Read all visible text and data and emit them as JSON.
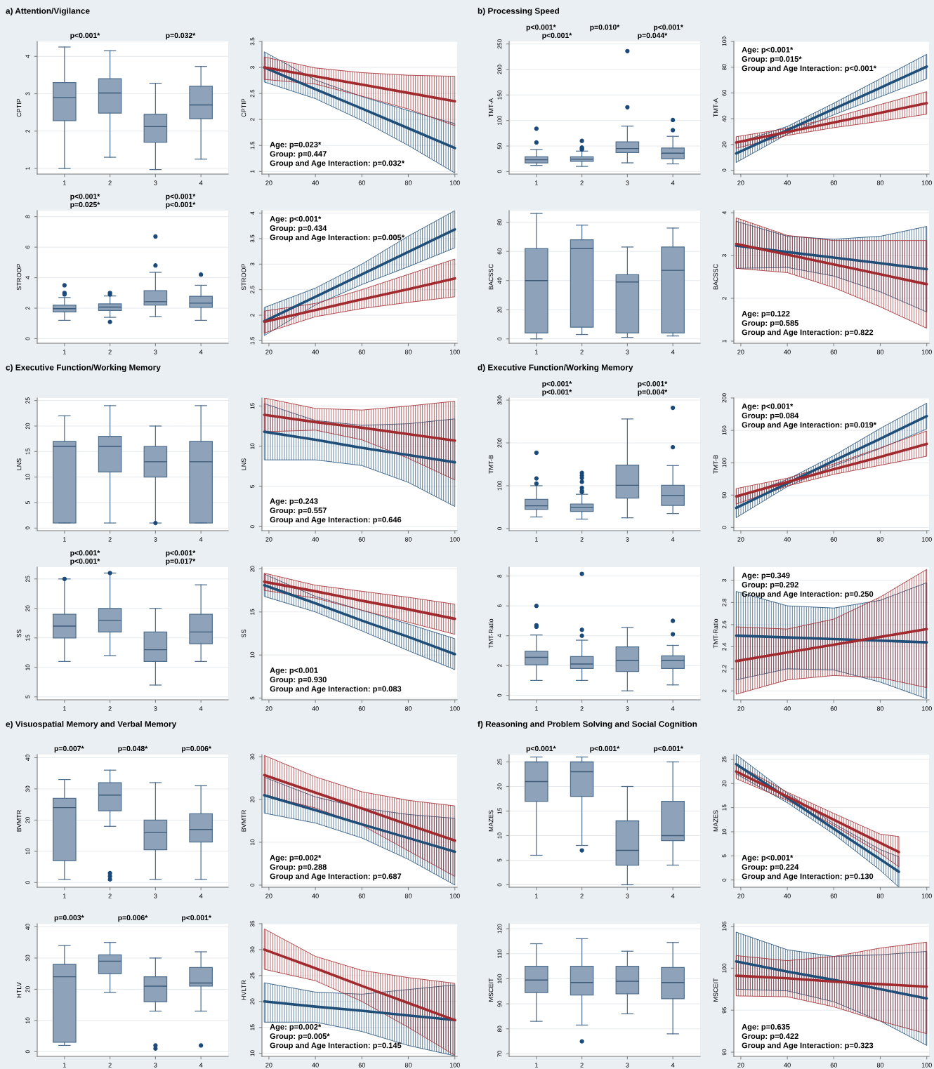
{
  "chart_data": [
    {
      "type": "box",
      "title": "a) Attention/Vigilance",
      "ylabel": "CPTIP",
      "categories": [
        "1",
        "2",
        "3",
        "4"
      ],
      "ylim": [
        0.85,
        4.4
      ],
      "yticks": [
        1,
        2,
        3,
        4
      ],
      "grid": "y",
      "boxes": [
        {
          "low": 1.0,
          "q1": 2.28,
          "median": 2.9,
          "q3": 3.3,
          "high": 4.25
        },
        {
          "low": 1.3,
          "q1": 2.48,
          "median": 3.02,
          "q3": 3.4,
          "high": 4.15
        },
        {
          "low": 0.97,
          "q1": 1.7,
          "median": 2.12,
          "q3": 2.45,
          "high": 3.28
        },
        {
          "low": 1.25,
          "q1": 2.33,
          "median": 2.7,
          "q3": 3.2,
          "high": 3.73
        }
      ],
      "annotations": [
        "p<0.001*",
        "p=0.032*"
      ]
    },
    {
      "type": "line",
      "ylabel": "CPTIP",
      "x": [
        18,
        40,
        60,
        80,
        100
      ],
      "xlim": [
        17,
        101
      ],
      "xticks": [
        20,
        40,
        60,
        80,
        100
      ],
      "ylim": [
        0.95,
        3.5
      ],
      "yticks": [
        1,
        1.5,
        2,
        2.5,
        3,
        3.5
      ],
      "grid": "y",
      "series": [
        {
          "color": "#1f4e79",
          "values": [
            3.0,
            2.58,
            2.21,
            1.83,
            1.45
          ],
          "lower": [
            2.72,
            2.4,
            1.98,
            1.5,
            0.97
          ],
          "upper": [
            3.3,
            2.76,
            2.44,
            2.17,
            1.92
          ]
        },
        {
          "color": "#a12a2f",
          "values": [
            3.0,
            2.83,
            2.67,
            2.51,
            2.35
          ],
          "lower": [
            2.77,
            2.68,
            2.45,
            2.2,
            1.88
          ],
          "upper": [
            3.2,
            2.99,
            2.9,
            2.85,
            2.83
          ]
        }
      ],
      "annotations": [
        "Age: p=0.023*",
        "Group: p=0.447",
        "Group and Age Interaction: p=0.032*"
      ]
    },
    {
      "type": "box",
      "ylabel": "STROOP",
      "categories": [
        "1",
        "2",
        "3",
        "4"
      ],
      "ylim": [
        -0.3,
        8.4
      ],
      "yticks": [
        0,
        2,
        4,
        6,
        8
      ],
      "grid": "y",
      "boxes": [
        {
          "low": 1.2,
          "q1": 1.75,
          "median": 1.97,
          "q3": 2.2,
          "high": 2.7,
          "outliers": [
            2.9,
            3.0,
            3.5
          ]
        },
        {
          "low": 1.4,
          "q1": 1.85,
          "median": 2.07,
          "q3": 2.28,
          "high": 2.8,
          "outliers": [
            1.1,
            2.9,
            3.0
          ]
        },
        {
          "low": 1.45,
          "q1": 2.2,
          "median": 2.42,
          "q3": 3.15,
          "high": 4.35,
          "outliers": [
            4.8,
            6.7
          ]
        },
        {
          "low": 1.2,
          "q1": 2.05,
          "median": 2.33,
          "q3": 2.78,
          "high": 3.5,
          "outliers": [
            4.2
          ]
        }
      ],
      "annotations": [
        "p<0.001*",
        "p<0.001*",
        "p=0.025*",
        "p<0.001*"
      ]
    },
    {
      "type": "line",
      "ylabel": "STROOP",
      "x": [
        18,
        40,
        60,
        80,
        100
      ],
      "xlim": [
        17,
        101
      ],
      "xticks": [
        20,
        40,
        60,
        80,
        100
      ],
      "ylim": [
        1.45,
        4.05
      ],
      "yticks": [
        1.5,
        2,
        2.5,
        3,
        3.5,
        4
      ],
      "grid": "y",
      "series": [
        {
          "color": "#1f4e79",
          "values": [
            1.88,
            2.36,
            2.8,
            3.24,
            3.68
          ],
          "lower": [
            1.6,
            2.2,
            2.6,
            2.95,
            3.32
          ],
          "upper": [
            2.15,
            2.53,
            3.0,
            3.55,
            4.05
          ]
        },
        {
          "color": "#a12a2f",
          "values": [
            1.87,
            2.1,
            2.31,
            2.51,
            2.72
          ],
          "lower": [
            1.65,
            1.97,
            2.13,
            2.25,
            2.36
          ],
          "upper": [
            2.08,
            2.23,
            2.5,
            2.8,
            3.1
          ]
        }
      ],
      "annotations": [
        "Age: p<0.001*",
        "Group: p=0.434",
        "Group and Age Interaction: p=0.005*"
      ]
    },
    {
      "type": "box",
      "title": "b) Processing Speed",
      "ylabel": "TMT-A",
      "categories": [
        "1",
        "2",
        "3",
        "4"
      ],
      "ylim": [
        -5,
        255
      ],
      "yticks": [
        0,
        50,
        100,
        150,
        200,
        250
      ],
      "grid": "y",
      "boxes": [
        {
          "low": 12,
          "q1": 17,
          "median": 23,
          "q3": 29,
          "high": 43,
          "outliers": [
            57,
            84
          ]
        },
        {
          "low": 10,
          "q1": 20,
          "median": 24,
          "q3": 29,
          "high": 40,
          "outliers": [
            43,
            45,
            47,
            60
          ]
        },
        {
          "low": 17,
          "q1": 37,
          "median": 45,
          "q3": 58,
          "high": 89,
          "outliers": [
            126,
            236
          ]
        },
        {
          "low": 15,
          "q1": 25,
          "median": 36,
          "q3": 46,
          "high": 69,
          "outliers": [
            81,
            101
          ]
        }
      ],
      "annotations": [
        "p<0.001*",
        "p=0.010*",
        "p<0.001*",
        "p<0.001*",
        "p=0.044*"
      ]
    },
    {
      "type": "line",
      "ylabel": "TMT-A",
      "x": [
        18,
        40,
        60,
        80,
        100
      ],
      "xlim": [
        17,
        101
      ],
      "xticks": [
        20,
        40,
        60,
        80,
        100
      ],
      "ylim": [
        -3,
        100
      ],
      "yticks": [
        0,
        20,
        40,
        60,
        80,
        100
      ],
      "grid": "y",
      "series": [
        {
          "color": "#1f4e79",
          "values": [
            13,
            31.1,
            47.6,
            64.0,
            80.5
          ],
          "lower": [
            6,
            28,
            43,
            57,
            71
          ],
          "upper": [
            21,
            34,
            52,
            71,
            90
          ]
        },
        {
          "color": "#a12a2f",
          "values": [
            21.5,
            29.7,
            37.1,
            44.6,
            52
          ],
          "lower": [
            17,
            27,
            33,
            38,
            43.5
          ],
          "upper": [
            26,
            32.5,
            41,
            51,
            61
          ]
        }
      ],
      "annotations": [
        "Age: p<0.001*",
        "Group: p=0.015*",
        "Group and Age Interaction: p<0.001*"
      ]
    },
    {
      "type": "box",
      "ylabel": "BACSSC",
      "categories": [
        "1",
        "2",
        "3",
        "4"
      ],
      "ylim": [
        -3,
        88
      ],
      "yticks": [
        0,
        20,
        40,
        60,
        80
      ],
      "grid": "y",
      "boxes": [
        {
          "low": 0,
          "q1": 4,
          "median": 40,
          "q3": 62,
          "high": 86
        },
        {
          "low": 3,
          "q1": 8,
          "median": 62,
          "q3": 68,
          "high": 78
        },
        {
          "low": 1,
          "q1": 4,
          "median": 39,
          "q3": 44,
          "high": 63
        },
        {
          "low": 2,
          "q1": 4,
          "median": 47,
          "q3": 63,
          "high": 76
        }
      ]
    },
    {
      "type": "line",
      "ylabel": "BACSSC",
      "x": [
        18,
        40,
        60,
        80,
        100
      ],
      "xlim": [
        17,
        101
      ],
      "xticks": [
        20,
        40,
        60,
        80,
        100
      ],
      "ylim": [
        0.95,
        4.05
      ],
      "yticks": [
        1,
        2,
        3,
        4
      ],
      "grid": "y",
      "series": [
        {
          "color": "#1f4e79",
          "values": [
            3.23,
            3.08,
            2.95,
            2.82,
            2.68
          ],
          "lower": [
            2.7,
            2.72,
            2.52,
            2.15,
            1.68
          ],
          "upper": [
            3.8,
            3.45,
            3.38,
            3.45,
            3.68
          ]
        },
        {
          "color": "#a12a2f",
          "values": [
            3.27,
            3.02,
            2.79,
            2.56,
            2.33
          ],
          "lower": [
            2.7,
            2.6,
            2.25,
            1.8,
            1.3
          ],
          "upper": [
            3.88,
            3.47,
            3.35,
            3.35,
            3.35
          ]
        }
      ],
      "annotations": [
        "Age: p=0.122",
        "Group: p=0.585",
        "Group and Age Interaction: p=0.822"
      ]
    },
    {
      "type": "box",
      "title": "c) Executive Function/Working Memory",
      "ylabel": "LNS",
      "categories": [
        "1",
        "2",
        "3",
        "4"
      ],
      "ylim": [
        -0.5,
        25.5
      ],
      "yticks": [
        0,
        5,
        10,
        15,
        20,
        25
      ],
      "grid": "y",
      "boxes": [
        {
          "low": 1,
          "q1": 1,
          "median": 16,
          "q3": 17,
          "high": 22
        },
        {
          "low": 1,
          "q1": 11,
          "median": 16,
          "q3": 18,
          "high": 24
        },
        {
          "low": 1,
          "q1": 10,
          "median": 13,
          "q3": 16,
          "high": 20,
          "outliers": [
            1
          ]
        },
        {
          "low": 1,
          "q1": 1,
          "median": 13,
          "q3": 17,
          "high": 24
        }
      ]
    },
    {
      "type": "line",
      "ylabel": "LNS",
      "x": [
        18,
        40,
        60,
        80,
        100
      ],
      "xlim": [
        17,
        101
      ],
      "xticks": [
        20,
        40,
        60,
        80,
        100
      ],
      "ylim": [
        -0.5,
        16
      ],
      "yticks": [
        0,
        5,
        10,
        15
      ],
      "grid": "y",
      "series": [
        {
          "color": "#1f4e79",
          "values": [
            11.8,
            10.8,
            9.8,
            8.9,
            8.0
          ],
          "lower": [
            8.3,
            8.3,
            7.6,
            5.5,
            2.5
          ],
          "upper": [
            15.3,
            13.2,
            12.6,
            12.8,
            13.4
          ]
        },
        {
          "color": "#a12a2f",
          "values": [
            13.9,
            13.0,
            12.3,
            11.5,
            10.7
          ],
          "lower": [
            11.8,
            12.0,
            10.8,
            8.5,
            5.8
          ],
          "upper": [
            16,
            14.7,
            14.5,
            15,
            15.6
          ]
        }
      ],
      "annotations": [
        "Age: p=0.243",
        "Group: p=0.557",
        "Group and Age Interaction: p=0.646"
      ]
    },
    {
      "type": "box",
      "ylabel": "SS",
      "categories": [
        "1",
        "2",
        "3",
        "4"
      ],
      "ylim": [
        4.5,
        27
      ],
      "yticks": [
        5,
        10,
        15,
        20,
        25
      ],
      "grid": "y",
      "boxes": [
        {
          "low": 11,
          "q1": 15,
          "median": 17,
          "q3": 19,
          "high": 25,
          "outliers": [
            25
          ]
        },
        {
          "low": 12,
          "q1": 16,
          "median": 18,
          "q3": 20,
          "high": 26,
          "outliers": [
            26
          ]
        },
        {
          "low": 7,
          "q1": 11,
          "median": 13,
          "q3": 16,
          "high": 20
        },
        {
          "low": 11,
          "q1": 14,
          "median": 16,
          "q3": 19,
          "high": 24
        }
      ],
      "annotations": [
        "p<0.001*",
        "p<0.001*",
        "p<0.001*",
        "p=0.017*"
      ]
    },
    {
      "type": "line",
      "ylabel": "SS",
      "x": [
        18,
        40,
        60,
        80,
        100
      ],
      "xlim": [
        17,
        101
      ],
      "xticks": [
        20,
        40,
        60,
        80,
        100
      ],
      "ylim": [
        4.8,
        20.2
      ],
      "yticks": [
        5,
        10,
        15,
        20
      ],
      "grid": "y",
      "series": [
        {
          "color": "#1f4e79",
          "values": [
            18.1,
            16.0,
            14.0,
            12.1,
            10.1
          ],
          "lower": [
            16.8,
            15.0,
            12.8,
            10.5,
            8.3
          ],
          "upper": [
            19.4,
            16.8,
            15.2,
            13.6,
            11.9
          ]
        },
        {
          "color": "#a12a2f",
          "values": [
            18.5,
            17.4,
            16.3,
            15.3,
            14.2
          ],
          "lower": [
            17.5,
            16.6,
            15.2,
            13.8,
            12.4
          ],
          "upper": [
            19.5,
            18.1,
            17.4,
            16.7,
            15.9
          ]
        }
      ],
      "annotations": [
        "Age: p<0.001",
        "Group: p=0.930",
        "Group and Age Interaction: p=0.083"
      ]
    },
    {
      "type": "box",
      "title": "d) Executive Function/Working Memory",
      "ylabel": "TMT-B",
      "categories": [
        "1",
        "2",
        "3",
        "4"
      ],
      "ylim": [
        -5,
        305
      ],
      "yticks": [
        0,
        100,
        200,
        300
      ],
      "grid": "y",
      "boxes": [
        {
          "low": 27,
          "q1": 45,
          "median": 53,
          "q3": 68,
          "high": 100,
          "outliers": [
            105,
            117,
            177
          ]
        },
        {
          "low": 22,
          "q1": 40,
          "median": 49,
          "q3": 57,
          "high": 80,
          "outliers": [
            85,
            88,
            95,
            109,
            118,
            124,
            130
          ]
        },
        {
          "low": 25,
          "q1": 71,
          "median": 101,
          "q3": 148,
          "high": 256
        },
        {
          "low": 35,
          "q1": 54,
          "median": 77,
          "q3": 101,
          "high": 147,
          "outliers": [
            190,
            282
          ]
        }
      ],
      "annotations": [
        "p<0.001*",
        "p<0.001*",
        "p<0.001*",
        "p=0.004*"
      ]
    },
    {
      "type": "line",
      "ylabel": "TMT-B",
      "x": [
        18,
        40,
        60,
        80,
        100
      ],
      "xlim": [
        17,
        101
      ],
      "xticks": [
        20,
        40,
        60,
        80,
        100
      ],
      "ylim": [
        -5,
        200
      ],
      "yticks": [
        0,
        50,
        100,
        150,
        200
      ],
      "grid": "y",
      "series": [
        {
          "color": "#1f4e79",
          "values": [
            30,
            68,
            103,
            137,
            172
          ],
          "lower": [
            15,
            63,
            95,
            122,
            152
          ],
          "upper": [
            46,
            74,
            111,
            153,
            192
          ]
        },
        {
          "color": "#a12a2f",
          "values": [
            48,
            70,
            90,
            109,
            129
          ],
          "lower": [
            36,
            64,
            82,
            96,
            110
          ],
          "upper": [
            60,
            76,
            98,
            123,
            149
          ]
        }
      ],
      "annotations": [
        "Age: p<0.001*",
        "Group: p=0.084",
        "Group and Age Interaction: p=0.019*"
      ]
    },
    {
      "type": "box",
      "ylabel": "TMT-Ratio",
      "categories": [
        "1",
        "2",
        "3",
        "4"
      ],
      "ylim": [
        -0.3,
        8.6
      ],
      "yticks": [
        0,
        2,
        4,
        6,
        8
      ],
      "grid": "y",
      "boxes": [
        {
          "low": 1.0,
          "q1": 2.05,
          "median": 2.55,
          "q3": 2.95,
          "high": 4.05,
          "outliers": [
            4.6,
            4.7,
            6.0
          ]
        },
        {
          "low": 1.0,
          "q1": 1.8,
          "median": 2.1,
          "q3": 2.6,
          "high": 3.7,
          "outliers": [
            4.0,
            4.4,
            8.15
          ]
        },
        {
          "low": 0.3,
          "q1": 1.6,
          "median": 2.35,
          "q3": 3.25,
          "high": 4.55
        },
        {
          "low": 0.7,
          "q1": 1.8,
          "median": 2.35,
          "q3": 2.65,
          "high": 3.35,
          "outliers": [
            4.1,
            5.0
          ]
        }
      ]
    },
    {
      "type": "line",
      "ylabel": "TMT-Ratio",
      "x": [
        18,
        40,
        60,
        80,
        100
      ],
      "xlim": [
        17,
        101
      ],
      "xticks": [
        20,
        40,
        60,
        80,
        100
      ],
      "ylim": [
        1.92,
        3.12
      ],
      "yticks": [
        2,
        2.2,
        2.4,
        2.6,
        2.8,
        3
      ],
      "grid": "y",
      "series": [
        {
          "color": "#1f4e79",
          "values": [
            2.5,
            2.484,
            2.469,
            2.455,
            2.44
          ],
          "lower": [
            2.1,
            2.2,
            2.19,
            2.08,
            1.93
          ],
          "upper": [
            2.9,
            2.77,
            2.75,
            2.82,
            2.98
          ]
        },
        {
          "color": "#a12a2f",
          "values": [
            2.27,
            2.348,
            2.419,
            2.489,
            2.56
          ],
          "lower": [
            1.97,
            2.1,
            2.14,
            2.12,
            2.03
          ],
          "upper": [
            2.58,
            2.56,
            2.65,
            2.85,
            3.1
          ]
        }
      ],
      "annotations": [
        "Age: p=0.349",
        "Group: p=0.292",
        "Group and Age Interaction: p=0.250"
      ]
    },
    {
      "type": "box",
      "title": "e) Visuospatial Memory and Verbal Memory",
      "ylabel": "BVMTR",
      "categories": [
        "1",
        "2",
        "3",
        "4"
      ],
      "ylim": [
        -1.5,
        41
      ],
      "yticks": [
        0,
        10,
        20,
        30,
        40
      ],
      "grid": "y",
      "boxes": [
        {
          "low": 1,
          "q1": 7,
          "median": 24,
          "q3": 27,
          "high": 33
        },
        {
          "low": 18,
          "q1": 23,
          "median": 28,
          "q3": 32,
          "high": 36,
          "outliers": [
            1,
            2,
            3
          ]
        },
        {
          "low": 1,
          "q1": 10.5,
          "median": 16,
          "q3": 20,
          "high": 32
        },
        {
          "low": 1,
          "q1": 13,
          "median": 17,
          "q3": 22,
          "high": 31
        }
      ],
      "annotations": [
        "p=0.007*",
        "p=0.048*",
        "p=0.006*"
      ]
    },
    {
      "type": "line",
      "ylabel": "BVMTR",
      "x": [
        18,
        40,
        60,
        80,
        100
      ],
      "xlim": [
        17,
        101
      ],
      "xticks": [
        20,
        40,
        60,
        80,
        100
      ],
      "ylim": [
        -0.5,
        30.5
      ],
      "yticks": [
        0,
        10,
        20,
        30
      ],
      "grid": "y",
      "series": [
        {
          "color": "#1f4e79",
          "values": [
            21,
            17.5,
            14.2,
            11.0,
            7.8
          ],
          "lower": [
            16.8,
            14.5,
            11,
            6,
            0
          ],
          "upper": [
            25.2,
            20.6,
            18,
            16.5,
            15.6
          ]
        },
        {
          "color": "#a12a2f",
          "values": [
            25.7,
            21.6,
            17.9,
            14.1,
            10.4
          ],
          "lower": [
            21,
            18,
            14,
            8,
            2
          ],
          "upper": [
            30.3,
            25.3,
            21.8,
            19.8,
            18.5
          ]
        }
      ],
      "annotations": [
        "Age: p=0.002*",
        "Group: p=0.288",
        "Group and Age Interaction: p=0.687"
      ]
    },
    {
      "type": "box",
      "ylabel": "HTLV",
      "categories": [
        "1",
        "2",
        "3",
        "4"
      ],
      "ylim": [
        -1.5,
        41
      ],
      "yticks": [
        0,
        10,
        20,
        30,
        40
      ],
      "grid": "y",
      "boxes": [
        {
          "low": 2,
          "q1": 3,
          "median": 24,
          "q3": 28,
          "high": 34
        },
        {
          "low": 19,
          "q1": 25,
          "median": 29,
          "q3": 31,
          "high": 35
        },
        {
          "low": 13,
          "q1": 16,
          "median": 21,
          "q3": 24,
          "high": 30,
          "outliers": [
            1,
            2
          ]
        },
        {
          "low": 13,
          "q1": 21,
          "median": 22,
          "q3": 27,
          "high": 32,
          "outliers": [
            2
          ]
        }
      ],
      "annotations": [
        "p=0.003*",
        "p=0.006*",
        "p<0.001*"
      ]
    },
    {
      "type": "line",
      "ylabel": "HVLTR",
      "x": [
        18,
        40,
        60,
        80,
        100
      ],
      "xlim": [
        17,
        101
      ],
      "xticks": [
        20,
        40,
        60,
        80,
        100
      ],
      "ylim": [
        9.4,
        35
      ],
      "yticks": [
        10,
        15,
        20,
        25,
        30,
        35
      ],
      "grid": "y",
      "series": [
        {
          "color": "#1f4e79",
          "values": [
            20,
            19.0,
            18.2,
            17.3,
            16.4
          ],
          "lower": [
            16,
            16,
            14.2,
            11.5,
            9.5
          ],
          "upper": [
            23.6,
            21.8,
            21.4,
            22.3,
            23.2
          ]
        },
        {
          "color": "#a12a2f",
          "values": [
            30,
            26.4,
            23.0,
            19.7,
            16.4
          ],
          "lower": [
            26.2,
            24,
            20,
            15,
            9.6
          ],
          "upper": [
            34.0,
            28.7,
            26,
            24.6,
            23.5
          ]
        }
      ],
      "annotations": [
        "Age: p=0.002*",
        "Group: p=0.005*",
        "Group and Age Interaction: p=0.145"
      ]
    },
    {
      "type": "box",
      "title": "f) Reasoning and Problem Solving and Social Cognition",
      "ylabel": "MAZES",
      "categories": [
        "1",
        "2",
        "3",
        "4"
      ],
      "ylim": [
        -0.5,
        26.5
      ],
      "yticks": [
        0,
        5,
        10,
        15,
        20,
        25
      ],
      "grid": "y",
      "boxes": [
        {
          "low": 6,
          "q1": 17,
          "median": 21,
          "q3": 25,
          "high": 26
        },
        {
          "low": 8,
          "q1": 18,
          "median": 23,
          "q3": 25,
          "high": 26,
          "outliers": [
            7
          ]
        },
        {
          "low": 0,
          "q1": 4,
          "median": 7,
          "q3": 13,
          "high": 20
        },
        {
          "low": 4,
          "q1": 9,
          "median": 10,
          "q3": 17,
          "high": 25
        }
      ],
      "annotations": [
        "p<0.001*",
        "p<0.001*",
        "p<0.001*"
      ]
    },
    {
      "type": "line",
      "ylabel": "MAZES",
      "x": [
        18,
        40,
        60,
        80,
        88
      ],
      "xlim": [
        17,
        101
      ],
      "xticks": [
        20,
        40,
        60,
        80,
        100
      ],
      "ylim": [
        -1.5,
        26
      ],
      "yticks": [
        0,
        5,
        10,
        15,
        20,
        25
      ],
      "grid": "y",
      "series": [
        {
          "color": "#1f4e79",
          "values": [
            24,
            17.0,
            10.6,
            4.3,
            1.7
          ],
          "lower": [
            22,
            16,
            9.5,
            2,
            -1.5
          ],
          "upper": [
            26,
            18,
            11.7,
            6.3,
            4.8
          ]
        },
        {
          "color": "#a12a2f",
          "values": [
            22.5,
            17.3,
            12.5,
            7.7,
            5.8
          ],
          "lower": [
            21,
            16.5,
            11.3,
            5.5,
            2.7
          ],
          "upper": [
            24,
            18.2,
            13.8,
            9.5,
            9.0
          ]
        }
      ],
      "annotations": [
        "Age: p<0.001*",
        "Group: p=0.224",
        "Group and Age Interaction: p=0.130"
      ]
    },
    {
      "type": "box",
      "ylabel": "MSCEIT",
      "categories": [
        "1",
        "2",
        "3",
        "4"
      ],
      "ylim": [
        69,
        122
      ],
      "yticks": [
        70,
        80,
        90,
        100,
        110,
        120
      ],
      "grid": "y",
      "boxes": [
        {
          "low": 83,
          "q1": 94.5,
          "median": 99.5,
          "q3": 105,
          "high": 114
        },
        {
          "low": 81.5,
          "q1": 93.5,
          "median": 98.5,
          "q3": 105,
          "high": 116,
          "outliers": [
            75
          ]
        },
        {
          "low": 86,
          "q1": 94,
          "median": 99,
          "q3": 105,
          "high": 111
        },
        {
          "low": 78,
          "q1": 92,
          "median": 98.5,
          "q3": 104.5,
          "high": 114.5
        }
      ]
    },
    {
      "type": "line",
      "ylabel": "MSCEIT",
      "x": [
        18,
        40,
        60,
        80,
        100
      ],
      "xlim": [
        17,
        101
      ],
      "xticks": [
        20,
        40,
        60,
        80,
        100
      ],
      "ylim": [
        89.5,
        105.3
      ],
      "yticks": [
        90,
        95,
        100,
        105
      ],
      "grid": "y",
      "series": [
        {
          "color": "#1f4e79",
          "values": [
            100.8,
            99.6,
            98.6,
            97.5,
            96.4
          ],
          "lower": [
            97.5,
            97.3,
            96.0,
            93.7,
            90.8
          ],
          "upper": [
            104.3,
            102.2,
            101.4,
            101.6,
            102.0
          ]
        },
        {
          "color": "#a12a2f",
          "values": [
            99.1,
            98.8,
            98.4,
            98.1,
            97.8
          ],
          "lower": [
            96.7,
            96.6,
            95.4,
            93.7,
            92.2
          ],
          "upper": [
            101.5,
            100.9,
            101.4,
            102.4,
            103.1
          ]
        }
      ],
      "annotations": [
        "Age: p=0.635",
        "Group: p=0.422",
        "Group and Age Interaction: p=0.323"
      ]
    }
  ]
}
